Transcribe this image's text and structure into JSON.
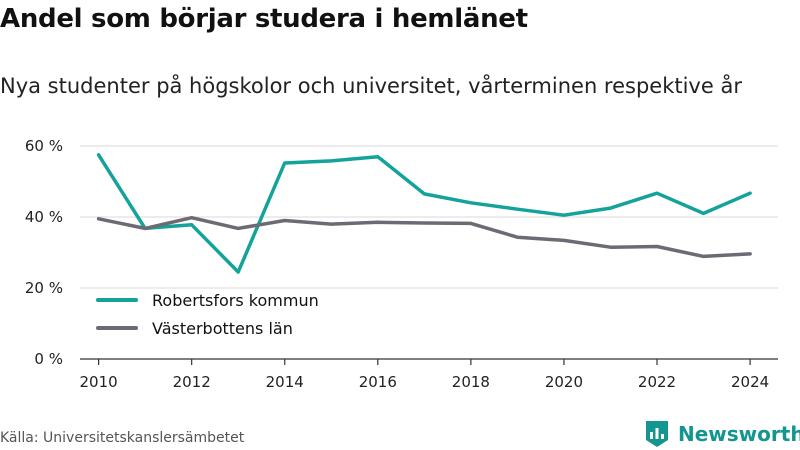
{
  "title": "Andel som börjar studera i hemlänet",
  "subtitle": "Nya studenter på högskolor och universitet, vårterminen respektive år",
  "source": "Källa: Universitetskanslersämbetet",
  "brand": {
    "name": "Newsworthy",
    "icon": "newsworthy-logo-icon",
    "color": "#14958f"
  },
  "chart_data": {
    "type": "line",
    "x": [
      2010,
      2011,
      2012,
      2013,
      2014,
      2015,
      2016,
      2017,
      2018,
      2019,
      2020,
      2021,
      2022,
      2023,
      2024
    ],
    "series": [
      {
        "name": "Robertsfors kommun",
        "color": "#14a39b",
        "values": [
          57.5,
          36.8,
          37.8,
          24.5,
          55.2,
          55.8,
          57.0,
          46.5,
          44.0,
          42.2,
          40.5,
          42.5,
          46.7,
          41.0,
          46.7
        ]
      },
      {
        "name": "Västerbottens län",
        "color": "#6b6b73",
        "values": [
          39.5,
          36.8,
          39.8,
          36.8,
          39.0,
          38.0,
          38.5,
          38.3,
          38.2,
          34.3,
          33.4,
          31.5,
          31.7,
          28.9,
          29.6
        ]
      }
    ],
    "y_ticks": [
      0,
      20,
      40,
      60
    ],
    "y_tick_labels": [
      "0 %",
      "20 %",
      "40 %",
      "60 %"
    ],
    "x_ticks": [
      2010,
      2012,
      2014,
      2016,
      2018,
      2020,
      2022,
      2024
    ],
    "x_tick_labels": [
      "2010",
      "2012",
      "2014",
      "2016",
      "2018",
      "2020",
      "2022",
      "2024"
    ],
    "ylim": [
      0,
      60
    ],
    "xlim": [
      2009.6,
      2024.6
    ],
    "grid": true,
    "legend": "bottom-left",
    "xlabel": "",
    "ylabel": ""
  }
}
